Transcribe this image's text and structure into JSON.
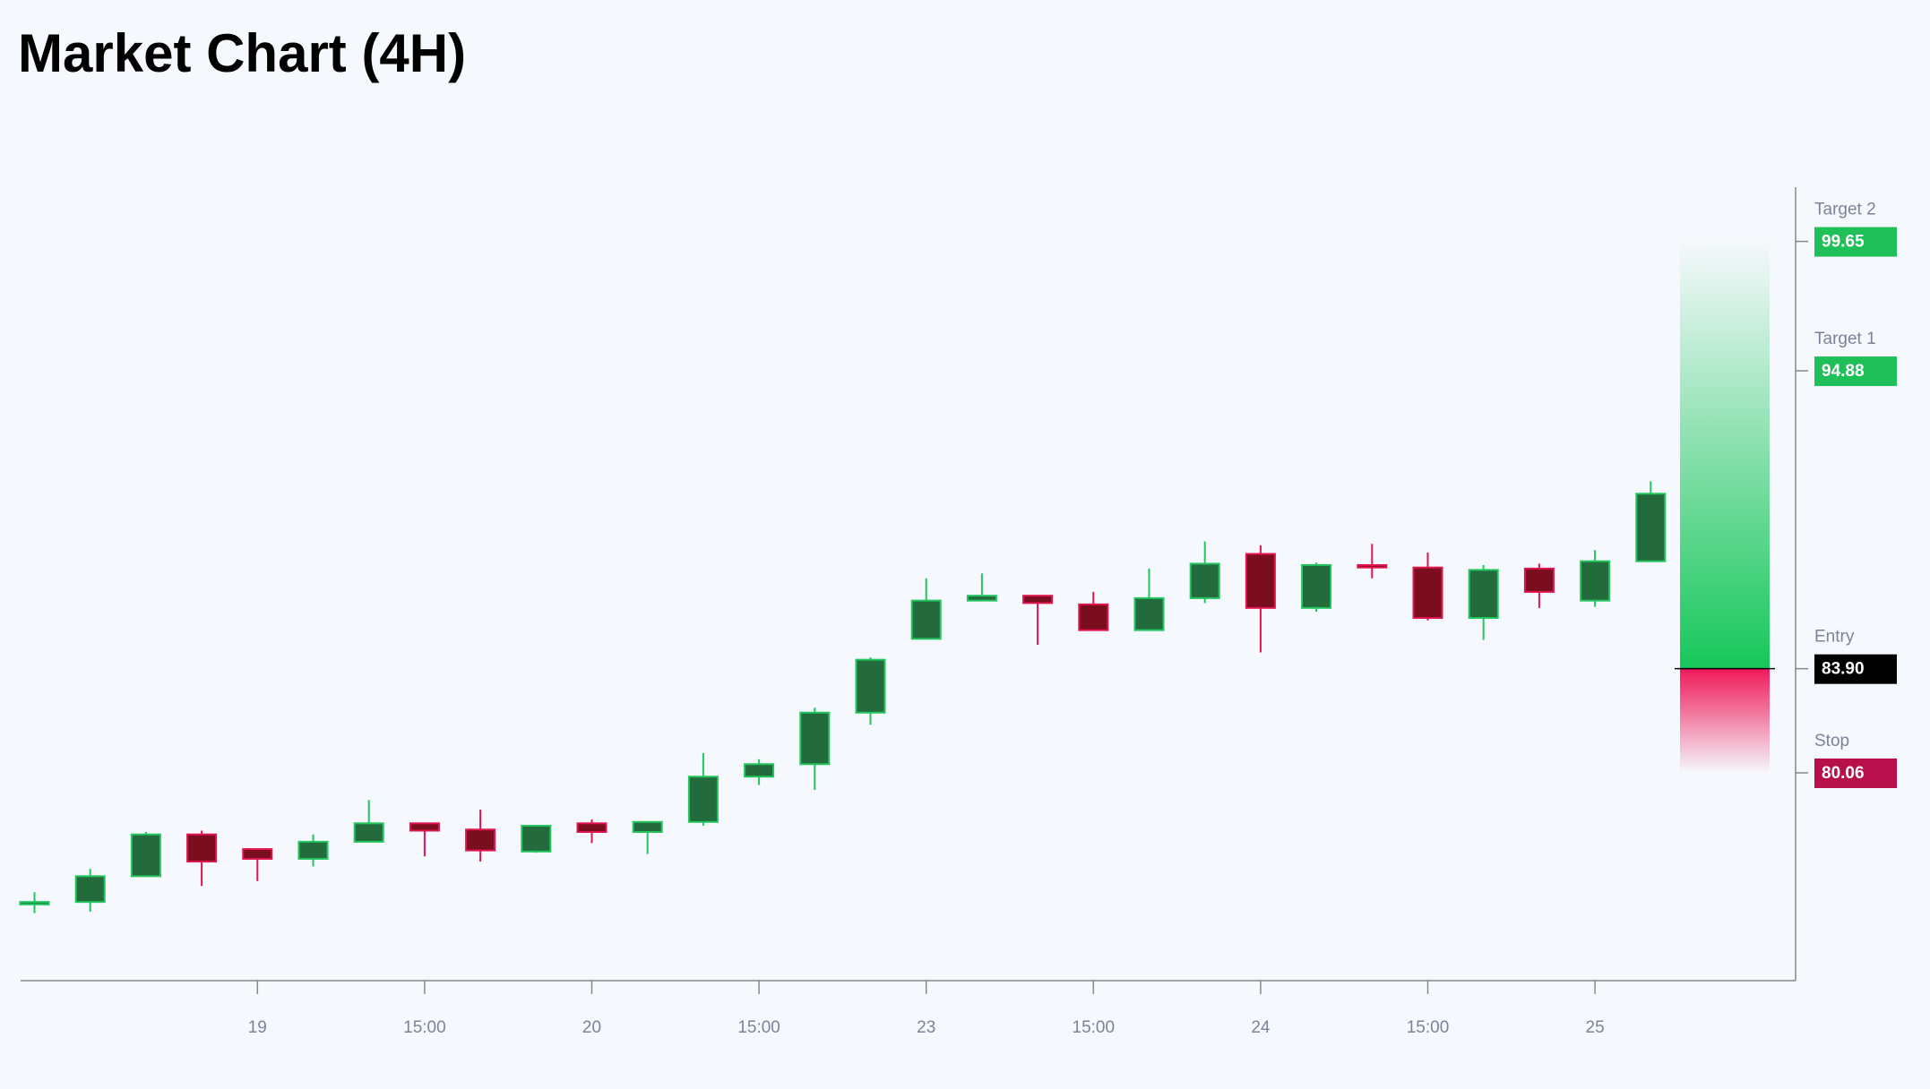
{
  "chart_data": {
    "type": "candlestick",
    "title": "Market Chart (4H)",
    "categories": [
      null,
      null,
      null,
      null,
      "19",
      null,
      null,
      "15:00",
      null,
      null,
      "20",
      null,
      null,
      "15:00",
      null,
      null,
      "23",
      null,
      null,
      "15:00",
      null,
      null,
      "24",
      null,
      null,
      "15:00",
      null,
      null,
      "25",
      null
    ],
    "open": [
      75.21,
      75.3,
      76.25,
      77.79,
      77.25,
      76.89,
      77.52,
      78.2,
      77.97,
      77.16,
      78.2,
      77.88,
      78.25,
      79.92,
      80.38,
      82.28,
      85.0,
      86.41,
      86.59,
      86.27,
      85.32,
      86.5,
      88.13,
      86.14,
      87.72,
      87.63,
      85.77,
      87.59,
      86.41,
      87.86
    ],
    "high": [
      75.66,
      76.52,
      77.88,
      77.93,
      77.25,
      77.79,
      79.06,
      78.2,
      78.7,
      78.11,
      78.34,
      78.25,
      80.79,
      80.56,
      82.46,
      84.32,
      87.23,
      87.41,
      86.59,
      86.73,
      87.59,
      88.59,
      88.45,
      87.81,
      88.5,
      88.18,
      87.72,
      87.77,
      88.27,
      90.81
    ],
    "low": [
      74.89,
      74.94,
      76.25,
      75.89,
      76.07,
      76.61,
      77.52,
      76.98,
      76.79,
      77.11,
      77.47,
      77.07,
      78.11,
      79.61,
      79.43,
      81.83,
      85.0,
      86.41,
      84.78,
      85.32,
      85.32,
      86.32,
      84.5,
      86.0,
      87.23,
      85.68,
      84.96,
      86.14,
      86.18,
      87.86
    ],
    "close": [
      75.3,
      76.25,
      77.79,
      76.79,
      76.89,
      77.52,
      78.2,
      77.93,
      77.2,
      78.11,
      77.88,
      78.25,
      79.92,
      80.38,
      82.28,
      84.23,
      86.41,
      86.59,
      86.32,
      85.32,
      86.5,
      87.77,
      86.14,
      87.72,
      87.63,
      85.77,
      87.54,
      86.73,
      87.86,
      90.35
    ],
    "up_color": "#236b3c",
    "up_edge": "#22c55e",
    "down_color": "#7a0e1e",
    "down_edge": "#e0144f",
    "ylim": [
      72.4,
      101.65
    ],
    "levels": [
      {
        "name": "Target 2",
        "value": 99.65,
        "label": "99.65",
        "color": "#1fbf5a"
      },
      {
        "name": "Target 1",
        "value": 94.88,
        "label": "94.88",
        "color": "#1fbf5a"
      },
      {
        "name": "Entry",
        "value": 83.9,
        "label": "83.90",
        "color": "#000000"
      },
      {
        "name": "Stop",
        "value": 80.06,
        "label": "80.06",
        "color": "#b8104a"
      }
    ]
  }
}
